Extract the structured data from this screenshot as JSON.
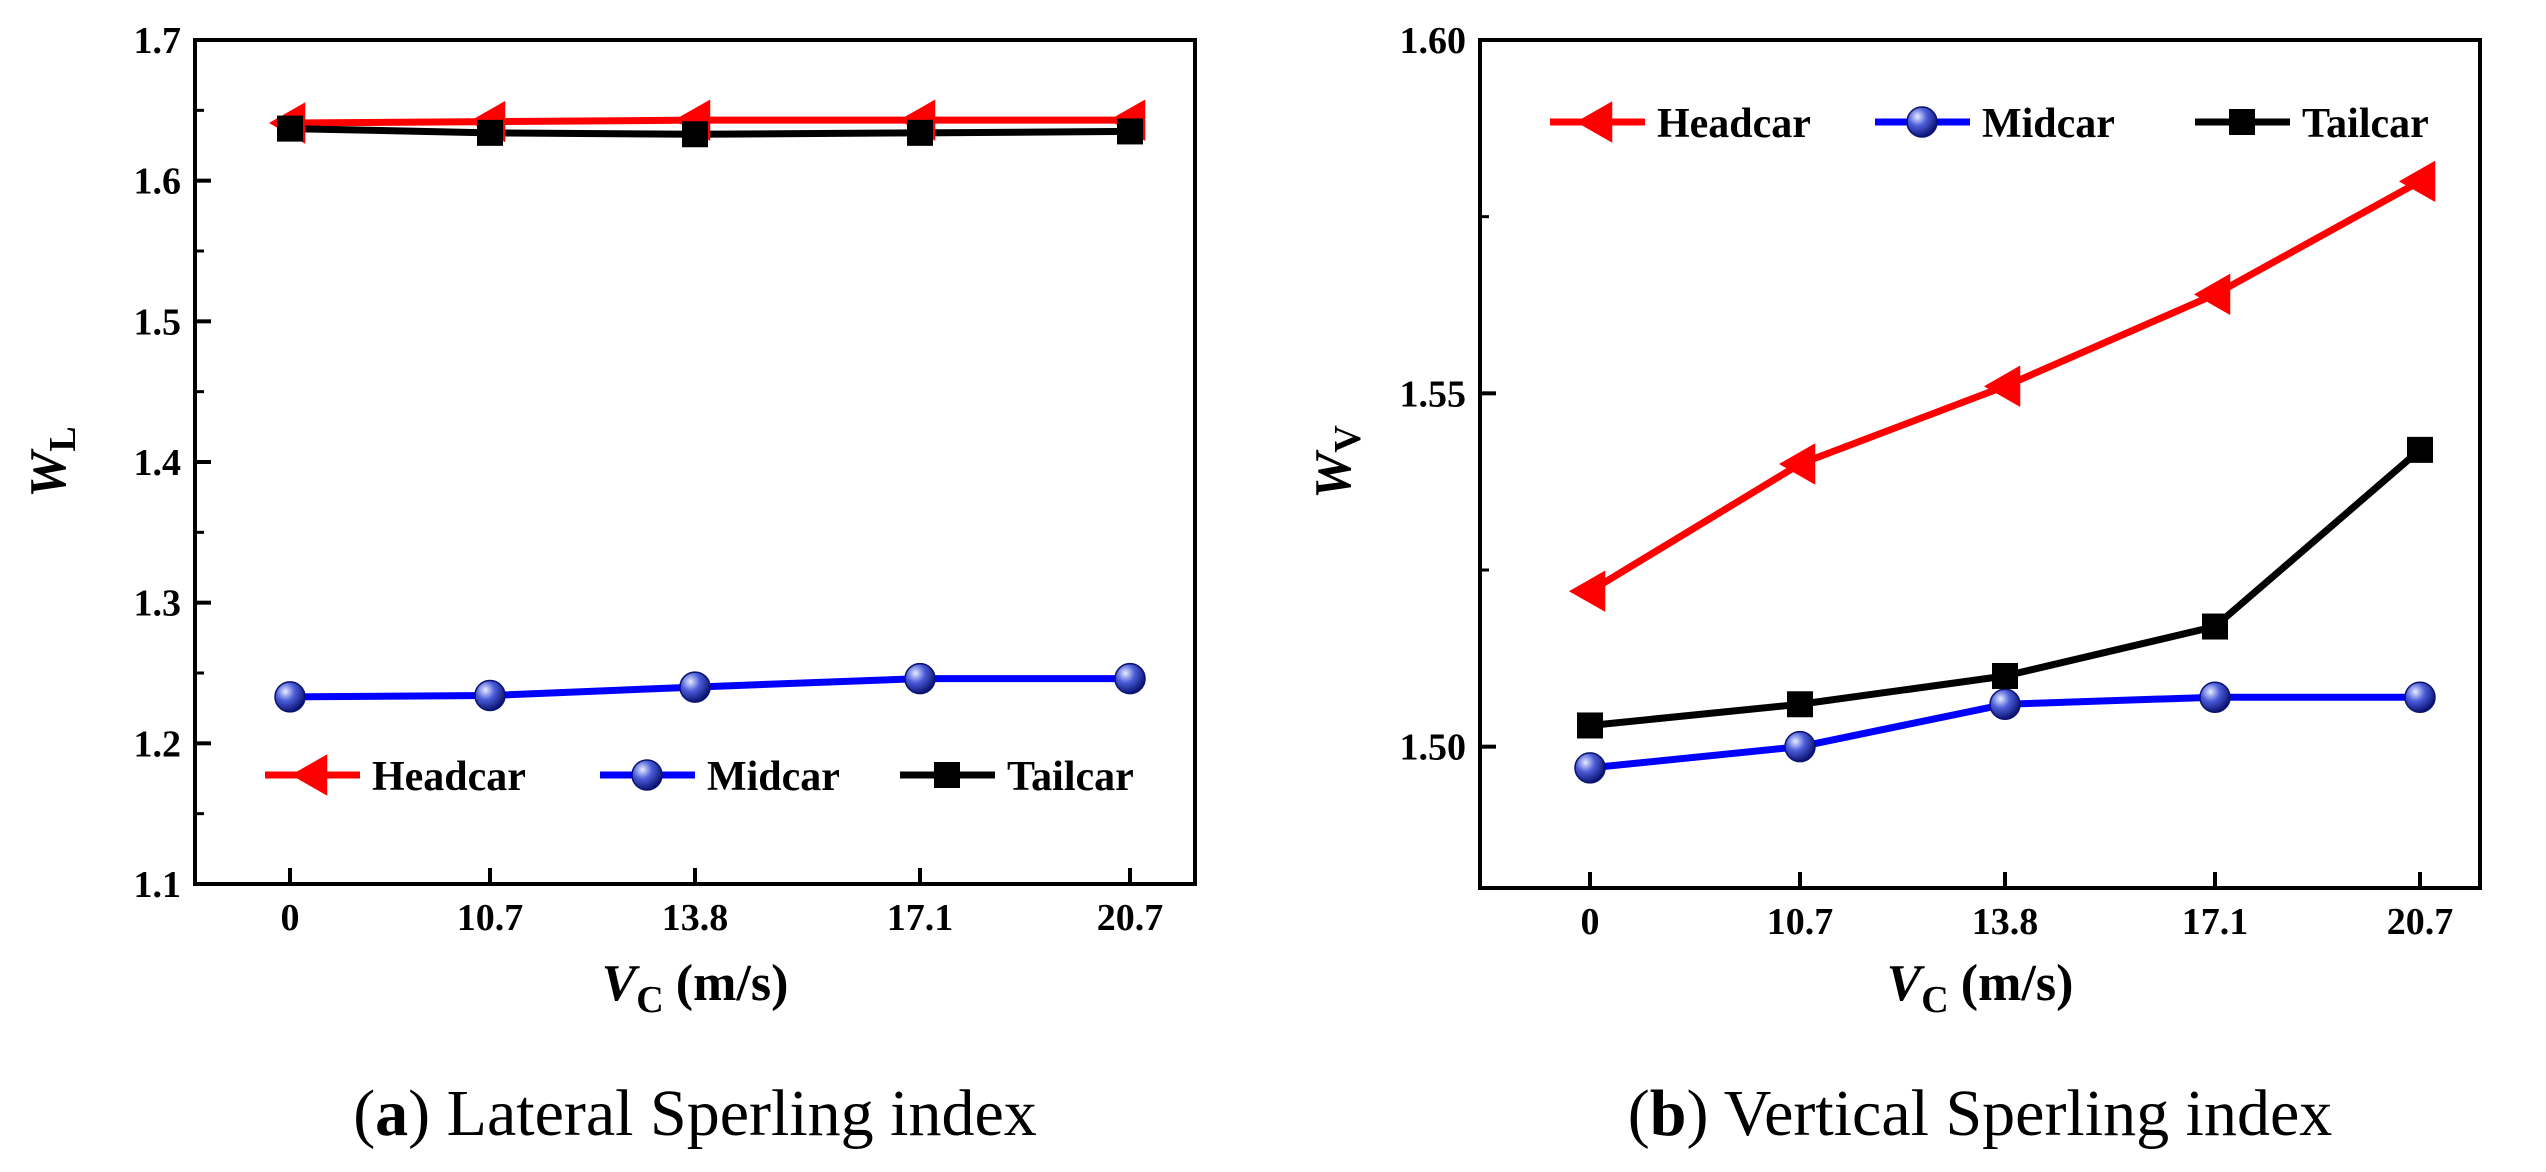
{
  "chart_data": [
    {
      "type": "line",
      "x_categories": [
        "0",
        "10.7",
        "13.8",
        "17.1",
        "20.7"
      ],
      "ylim": [
        1.1,
        1.7
      ],
      "yticks": [
        "1.1",
        "1.2",
        "1.3",
        "1.4",
        "1.5",
        "1.6",
        "1.7"
      ],
      "ylabel": "W",
      "ylabel_sub": "L",
      "xlabel": "V",
      "xlabel_sub": "C",
      "xlabel_unit": "(m/s)",
      "legend_position": "bottom",
      "series": [
        {
          "name": "Headcar",
          "color": "#ff0000",
          "marker": "triangle-left",
          "values": [
            1.641,
            1.642,
            1.643,
            1.643,
            1.643
          ]
        },
        {
          "name": "Midcar",
          "color": "#0000ff",
          "marker": "sphere",
          "values": [
            1.233,
            1.234,
            1.24,
            1.246,
            1.246
          ]
        },
        {
          "name": "Tailcar",
          "color": "#000000",
          "marker": "square",
          "values": [
            1.637,
            1.634,
            1.633,
            1.634,
            1.635
          ]
        }
      ],
      "caption_label": "a",
      "caption_text": "Lateral Sperling index"
    },
    {
      "type": "line",
      "x_categories": [
        "0",
        "10.7",
        "13.8",
        "17.1",
        "20.7"
      ],
      "ylim": [
        1.48,
        1.6
      ],
      "yticks": [
        "1.50",
        "1.55",
        "1.60"
      ],
      "ylabel": "W",
      "ylabel_sub": "V",
      "xlabel": "V",
      "xlabel_sub": "C",
      "xlabel_unit": "(m/s)",
      "legend_position": "top",
      "series": [
        {
          "name": "Headcar",
          "color": "#ff0000",
          "marker": "triangle-left",
          "values": [
            1.522,
            1.54,
            1.551,
            1.564,
            1.58
          ]
        },
        {
          "name": "Midcar",
          "color": "#0000ff",
          "marker": "sphere",
          "values": [
            1.497,
            1.5,
            1.506,
            1.507,
            1.507
          ]
        },
        {
          "name": "Tailcar",
          "color": "#000000",
          "marker": "square",
          "values": [
            1.503,
            1.506,
            1.51,
            1.517,
            1.542
          ]
        }
      ],
      "caption_label": "b",
      "caption_text": "Vertical Sperling index"
    }
  ]
}
